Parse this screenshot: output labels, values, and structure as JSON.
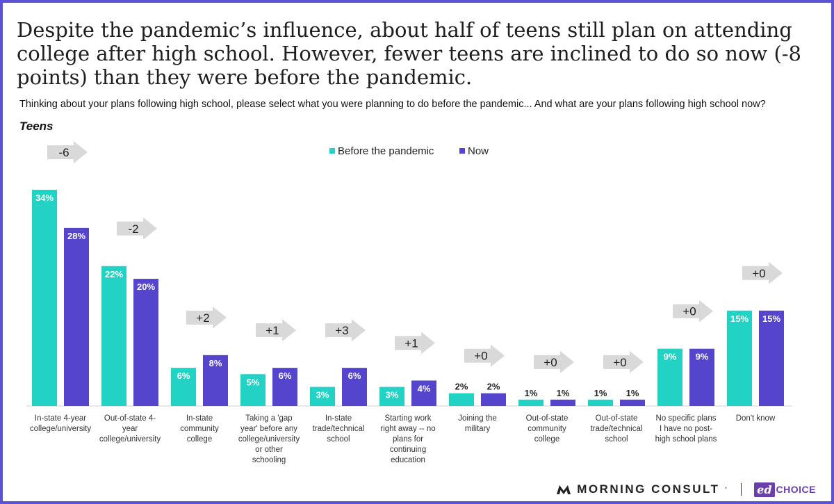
{
  "title": "Despite the pandemic’s influence, about half of teens still plan on attending college after high school. However, fewer teens are inclined to do so now (-8 points) than they were before the pandemic.",
  "subtitle": "Thinking about your plans following high school, please select what you were planning to do before the pandemic... And what are your plans following high school now?",
  "section_label": "Teens",
  "colors": {
    "before": "#22d3c5",
    "now": "#5545cc",
    "arrow": "#d9d9d9",
    "frame": "#5b52d6"
  },
  "chart_data": {
    "type": "bar",
    "series": [
      {
        "name": "Before the pandemic",
        "values": [
          34,
          22,
          6,
          5,
          3,
          3,
          2,
          1,
          1,
          9,
          15
        ]
      },
      {
        "name": "Now",
        "values": [
          28,
          20,
          8,
          6,
          6,
          4,
          2,
          1,
          1,
          9,
          15
        ]
      }
    ],
    "value_labels": {
      "before": [
        "34%",
        "22%",
        "6%",
        "5%",
        "3%",
        "3%",
        "2%",
        "1%",
        "1%",
        "9%",
        "15%"
      ],
      "now": [
        "28%",
        "20%",
        "8%",
        "6%",
        "6%",
        "4%",
        "2%",
        "1%",
        "1%",
        "9%",
        "15%"
      ]
    },
    "categories": [
      [
        "In-state 4-year",
        "college/university"
      ],
      [
        "Out-of-state 4-",
        "year",
        "college/university"
      ],
      [
        "In-state",
        "community",
        "college"
      ],
      [
        "Taking a 'gap",
        "year' before any",
        "college/university",
        "or other",
        "schooling"
      ],
      [
        "In-state",
        "trade/technical",
        "school"
      ],
      [
        "Starting work",
        "right away -- no",
        "plans for",
        "continuing",
        "education"
      ],
      [
        "Joining the",
        "military"
      ],
      [
        "Out-of-state",
        "community",
        "college"
      ],
      [
        "Out-of-state",
        "trade/technical",
        "school"
      ],
      [
        "No specific plans",
        "I have no post-",
        "high school plans"
      ],
      [
        "Don't know"
      ]
    ],
    "changes": [
      "-6",
      "-2",
      "+2",
      "+1",
      "+3",
      "+1",
      "+0",
      "+0",
      "+0",
      "+0",
      "+0"
    ],
    "ylim": [
      0,
      34
    ],
    "legend_position": "top-center",
    "grid": false
  },
  "footer": {
    "morning_consult": "MORNING CONSULT",
    "ed": "ed",
    "choice": "CHOICE"
  }
}
